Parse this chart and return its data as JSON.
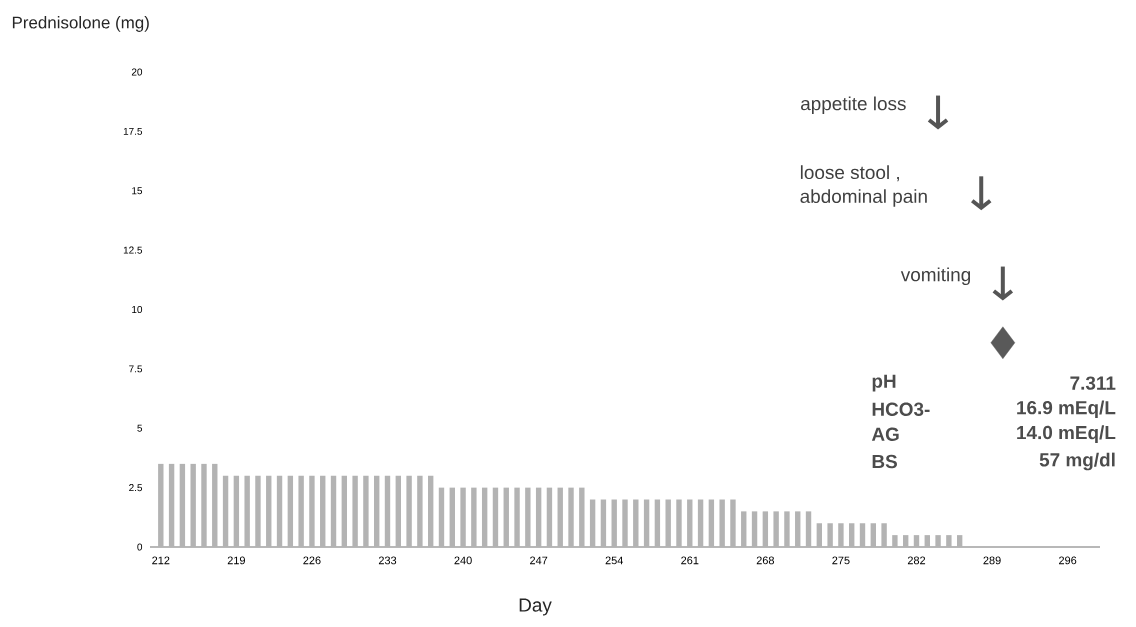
{
  "chart_data": {
    "type": "bar",
    "ylabel": "Prednisolone (mg)",
    "xlabel": "Day",
    "x": [
      212,
      213,
      214,
      215,
      216,
      217,
      218,
      219,
      220,
      221,
      222,
      223,
      224,
      225,
      226,
      227,
      228,
      229,
      230,
      231,
      232,
      233,
      234,
      235,
      236,
      237,
      238,
      239,
      240,
      241,
      242,
      243,
      244,
      245,
      246,
      247,
      248,
      249,
      250,
      251,
      252,
      253,
      254,
      255,
      256,
      257,
      258,
      259,
      260,
      261,
      262,
      263,
      264,
      265,
      266,
      267,
      268,
      269,
      270,
      271,
      272,
      273,
      274,
      275,
      276,
      277,
      278,
      279,
      280,
      281,
      282,
      283,
      284,
      285,
      286
    ],
    "xlim": [
      211,
      299
    ],
    "xticks": [
      212,
      219,
      226,
      233,
      240,
      247,
      254,
      261,
      268,
      275,
      282,
      289,
      296
    ],
    "ylim": [
      0,
      20
    ],
    "yticks": [
      0,
      2.5,
      5,
      7.5,
      10,
      12.5,
      15,
      17.5,
      20
    ],
    "series": [
      {
        "color": "#b3b3b3",
        "values": [
          3.5,
          3.5,
          3.5,
          3.5,
          3.5,
          3.5,
          3,
          3,
          3,
          3,
          3,
          3,
          3,
          3,
          3,
          3,
          3,
          3,
          3,
          3,
          3,
          3,
          3,
          3,
          3,
          3,
          2.5,
          2.5,
          2.5,
          2.5,
          2.5,
          2.5,
          2.5,
          2.5,
          2.5,
          2.5,
          2.5,
          2.5,
          2.5,
          2.5,
          2,
          2,
          2,
          2,
          2,
          2,
          2,
          2,
          2,
          2,
          2,
          2,
          2,
          2,
          1.5,
          1.5,
          1.5,
          1.5,
          1.5,
          1.5,
          1.5,
          1,
          1,
          1,
          1,
          1,
          1,
          1,
          0.5,
          0.5,
          0.5,
          0.5,
          0.5,
          0.5,
          0.5
        ]
      },
      {
        "type": "scatter",
        "x": [
          290
        ],
        "values": [
          8.6
        ],
        "color": "#595959",
        "marker": "diamond"
      }
    ],
    "annotations": [
      "appetite loss",
      "loose stool , abdominal pain",
      "vomiting",
      "pH",
      "7.311",
      "HCO3-",
      "16.9 mEq/L",
      "AG",
      "14.0 mEq/L",
      "BS",
      "57 mg/dl"
    ]
  }
}
